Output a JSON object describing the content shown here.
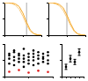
{
  "chart_data": [
    {
      "type": "line",
      "xlim": [
        0,
        10
      ],
      "ylim": [
        0,
        1
      ],
      "xticks": [
        0,
        5,
        10
      ],
      "yticks": [
        0,
        0.5,
        1
      ],
      "grid": false,
      "tick_labels": false,
      "series": [
        {
          "color": "#f5a623",
          "x": [
            0,
            1,
            2,
            3,
            4,
            5,
            6,
            7,
            8,
            9,
            10
          ],
          "values": [
            1,
            1,
            0.99,
            0.96,
            0.88,
            0.68,
            0.4,
            0.16,
            0.05,
            0.01,
            0
          ]
        },
        {
          "color": "#f9cb7f",
          "x": [
            0,
            1,
            2,
            3,
            4,
            5,
            6,
            7,
            8,
            9,
            10
          ],
          "values": [
            1,
            0.99,
            0.97,
            0.92,
            0.8,
            0.58,
            0.32,
            0.12,
            0.04,
            0.01,
            0
          ]
        },
        {
          "color": "#aaaaaa",
          "x": [
            6,
            6
          ],
          "values": [
            0,
            1
          ]
        }
      ]
    },
    {
      "type": "line",
      "xlim": [
        0,
        10
      ],
      "ylim": [
        0,
        1
      ],
      "xticks": [
        0,
        5,
        10
      ],
      "yticks": [
        0,
        0.5,
        1
      ],
      "grid": false,
      "tick_labels": false,
      "series": [
        {
          "color": "#f5a623",
          "x": [
            0,
            1,
            2,
            3,
            4,
            5,
            6,
            7,
            8,
            9,
            10
          ],
          "values": [
            1,
            1,
            0.98,
            0.94,
            0.84,
            0.62,
            0.36,
            0.14,
            0.04,
            0.01,
            0
          ]
        },
        {
          "color": "#f9cb7f",
          "x": [
            0,
            1,
            2,
            3,
            4,
            5,
            6,
            7,
            8,
            9,
            10
          ],
          "values": [
            1,
            0.99,
            0.96,
            0.9,
            0.76,
            0.54,
            0.3,
            0.11,
            0.03,
            0.01,
            0
          ]
        },
        {
          "color": "#aaaaaa",
          "x": [
            5,
            5
          ],
          "values": [
            0,
            1
          ]
        }
      ]
    },
    {
      "type": "scatter",
      "xlim": [
        0,
        10
      ],
      "ylim": [
        0,
        10
      ],
      "xticks": [
        0,
        5,
        10
      ],
      "yticks": [
        0,
        5,
        10
      ],
      "grid": false,
      "tick_labels": false,
      "series": [
        {
          "color": "#000000",
          "marker": "circle",
          "x": [
            1,
            1,
            1,
            1,
            2,
            2,
            2,
            2,
            2,
            3,
            3,
            3,
            3,
            4,
            4,
            4,
            4,
            4,
            5,
            5,
            5,
            5,
            6,
            6,
            6,
            6,
            6,
            7,
            7,
            7,
            7,
            8,
            8,
            8,
            8,
            9,
            9,
            9,
            9
          ],
          "values": [
            4,
            5.5,
            6.5,
            7,
            3.5,
            5,
            6,
            7.5,
            8,
            4.5,
            5.5,
            6.5,
            7,
            3,
            4.5,
            5.5,
            6.5,
            8.5,
            4,
            5,
            6,
            7,
            3.5,
            5,
            6,
            7,
            8,
            4,
            5.5,
            6.5,
            7.5,
            4.5,
            5.5,
            6,
            7,
            4,
            5,
            6.5,
            7.5
          ]
        },
        {
          "color": "#e02020",
          "marker": "circle",
          "x": [
            1,
            3,
            5,
            7,
            9
          ],
          "values": [
            1.5,
            2,
            1.2,
            1.8,
            1.4
          ]
        }
      ]
    },
    {
      "type": "scatter",
      "xlim": [
        0,
        5
      ],
      "ylim": [
        0,
        1
      ],
      "xticks": [
        0,
        1,
        2,
        3,
        4,
        5
      ],
      "yticks": [
        0,
        0.5,
        1
      ],
      "grid": false,
      "tick_labels": false,
      "series": [
        {
          "color": "#000000",
          "marker": "circle",
          "x": [
            1,
            2,
            3,
            4
          ],
          "values": [
            0.3,
            0.55,
            0.45,
            0.75
          ],
          "errors": [
            0.08,
            0.1,
            0.08,
            0.1
          ]
        }
      ]
    }
  ]
}
